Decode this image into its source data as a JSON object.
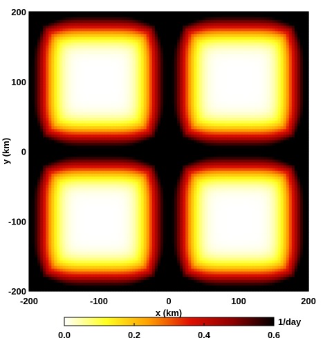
{
  "chart_data": {
    "type": "heatmap",
    "title": "",
    "xlabel": "x (km)",
    "ylabel": "y (km)",
    "xlim": [
      -200,
      200
    ],
    "ylim": [
      -200,
      200
    ],
    "x_ticks": [
      -200,
      -100,
      0,
      100,
      200
    ],
    "y_ticks": [
      -200,
      -100,
      0,
      100,
      200
    ],
    "x_tick_labels": [
      "-200",
      "-100",
      "0",
      "100",
      "200"
    ],
    "y_tick_labels": [
      "-200",
      "-100",
      "0",
      "100",
      "200"
    ],
    "grid": false,
    "field_description_pattern": "periodic cell pattern, period 200 km in x and y; minima (white) near x=±100, y=±100; maxima (dark red) along x=0 and y=0 and domain edges",
    "colorbar": {
      "label": "1/day",
      "range": [
        0.0,
        0.6
      ],
      "ticks": [
        0.0,
        0.2,
        0.4,
        0.6
      ],
      "tick_labels": [
        "0.0",
        "0.2",
        "0.4",
        "0.6"
      ],
      "colormap": [
        "#ffffff",
        "#ffff20",
        "#ffa000",
        "#e01000",
        "#900000",
        "#000000"
      ]
    }
  }
}
